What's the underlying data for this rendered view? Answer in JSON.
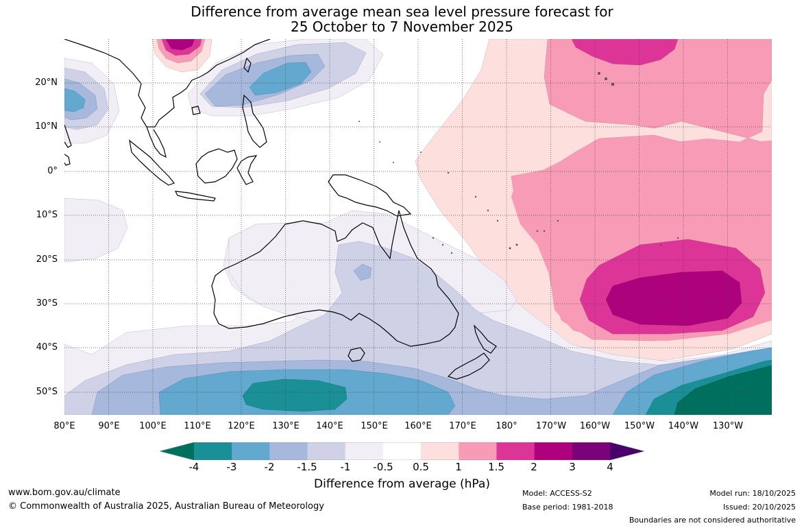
{
  "title_line1": "Difference from average mean sea level pressure forecast for",
  "title_line2": "25 October to 7 November 2025",
  "latitude_labels": [
    "20°N",
    "10°N",
    "0°",
    "10°S",
    "20°S",
    "30°S",
    "40°S",
    "50°S"
  ],
  "longitude_labels": [
    "80°E",
    "90°E",
    "100°E",
    "110°E",
    "120°E",
    "130°E",
    "140°E",
    "150°E",
    "160°E",
    "170°E",
    "180°",
    "170°W",
    "160°W",
    "150°W",
    "140°W",
    "130°W"
  ],
  "colorbar": {
    "ticks": [
      "-4",
      "-3",
      "-2",
      "-1.5",
      "-1",
      "-0.5",
      "0.5",
      "1",
      "1.5",
      "2",
      "3",
      "4"
    ],
    "label": "Difference from average (hPa)",
    "colors": [
      "#00705e",
      "#1a8f95",
      "#62a8cf",
      "#a6b8dc",
      "#cfd1e6",
      "#f1eef5",
      "#ffffff",
      "#fde0dd",
      "#f89bb7",
      "#dd3497",
      "#ae017e",
      "#7a0177",
      "#49006a"
    ]
  },
  "footer": {
    "website": "www.bom.gov.au/climate",
    "copyright": "© Commonwealth of Australia 2025, Australian Bureau of Meteorology",
    "model": "Model: ACCESS-S2",
    "base_period": "Base period: 1981-2018",
    "model_run": "Model run: 18/10/2025",
    "issued": "Issued: 20/10/2025",
    "disclaimer": "Boundaries are not considered authoritative"
  }
}
